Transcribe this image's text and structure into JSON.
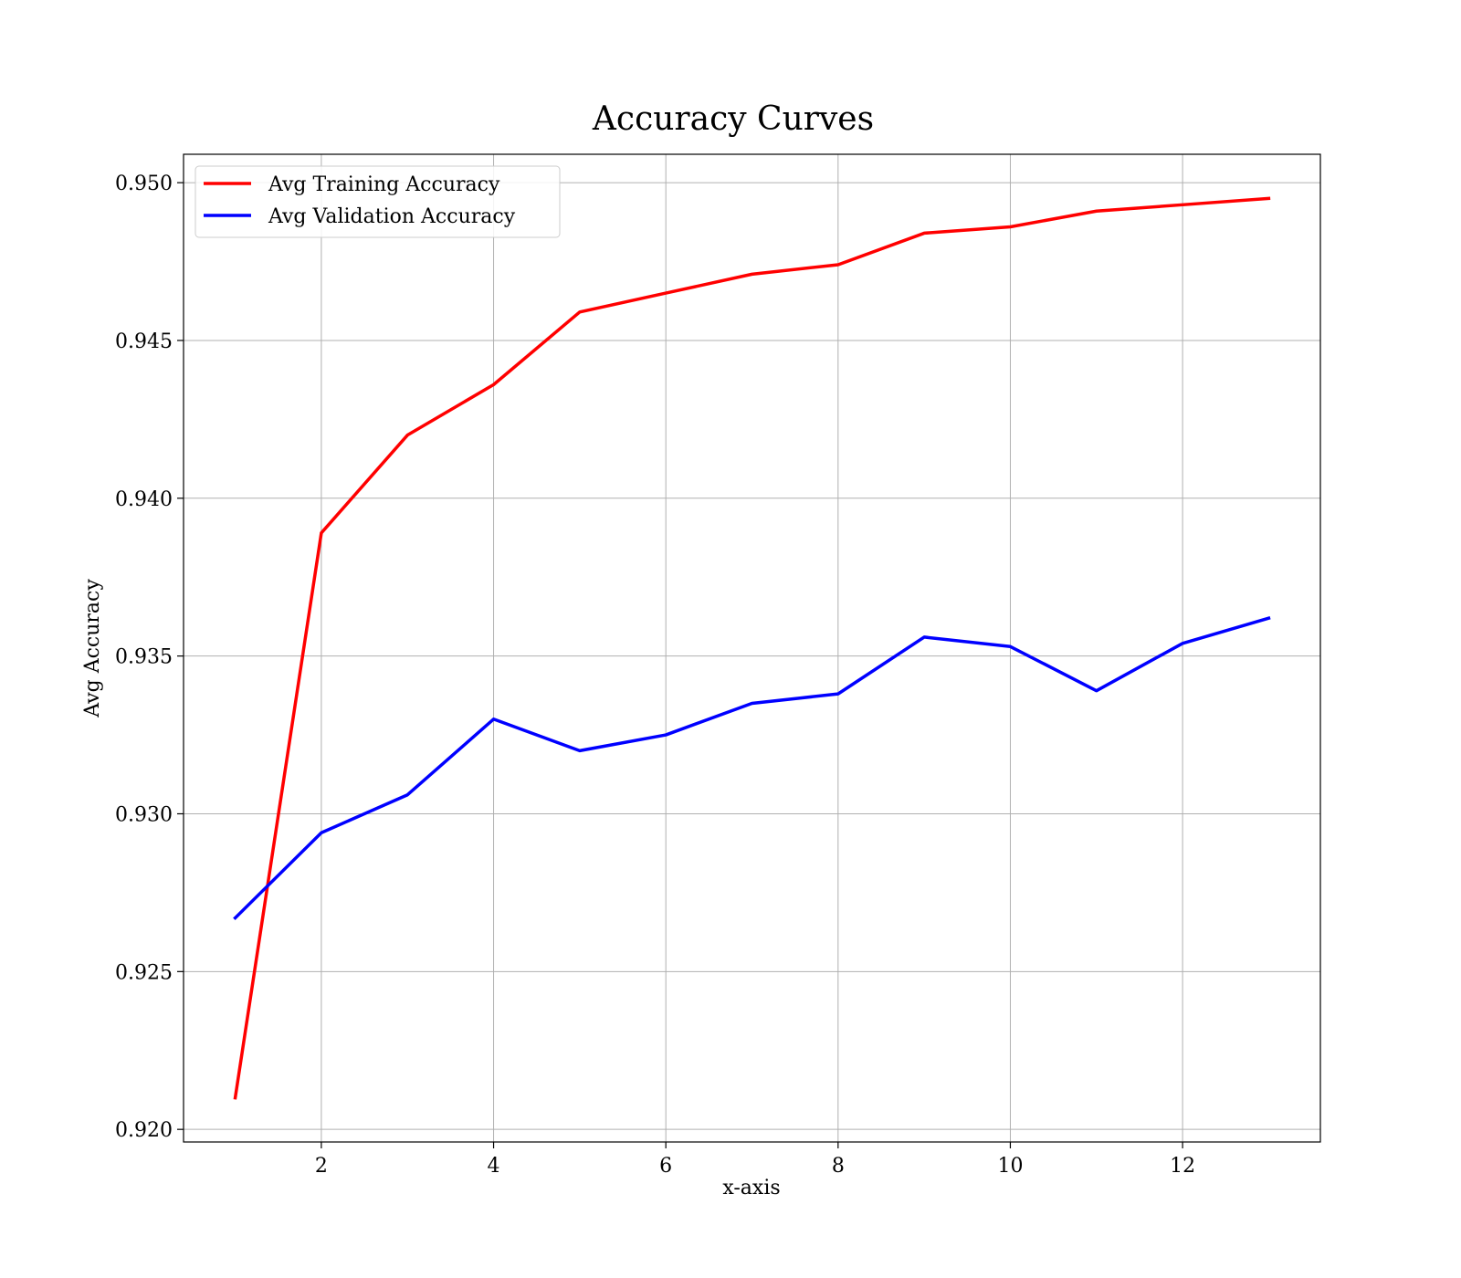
{
  "chart_data": {
    "type": "line",
    "title": "Accuracy Curves",
    "xlabel": "x-axis",
    "ylabel": "Avg Accuracy",
    "x": [
      1,
      2,
      3,
      4,
      5,
      6,
      7,
      8,
      9,
      10,
      11,
      12,
      13
    ],
    "xlim": [
      0.4,
      13.6
    ],
    "ylim": [
      0.9196,
      0.9509
    ],
    "xticks": [
      2,
      4,
      6,
      8,
      10,
      12
    ],
    "yticks": [
      0.92,
      0.925,
      0.93,
      0.935,
      0.94,
      0.945,
      0.95
    ],
    "xtick_labels": [
      "2",
      "4",
      "6",
      "8",
      "10",
      "12"
    ],
    "ytick_labels": [
      "0.920",
      "0.925",
      "0.930",
      "0.935",
      "0.940",
      "0.945",
      "0.950"
    ],
    "grid": true,
    "legend_position": "top-left",
    "series": [
      {
        "name": "Avg Training Accuracy",
        "color": "#ff0000",
        "values": [
          0.921,
          0.9389,
          0.942,
          0.9436,
          0.9459,
          0.9465,
          0.9471,
          0.9474,
          0.9484,
          0.9486,
          0.9491,
          0.9493,
          0.9495
        ]
      },
      {
        "name": "Avg Validation Accuracy",
        "color": "#0000ff",
        "values": [
          0.9267,
          0.9294,
          0.9306,
          0.933,
          0.932,
          0.9325,
          0.9335,
          0.9338,
          0.9356,
          0.9353,
          0.9339,
          0.9354,
          0.9362
        ]
      }
    ]
  }
}
